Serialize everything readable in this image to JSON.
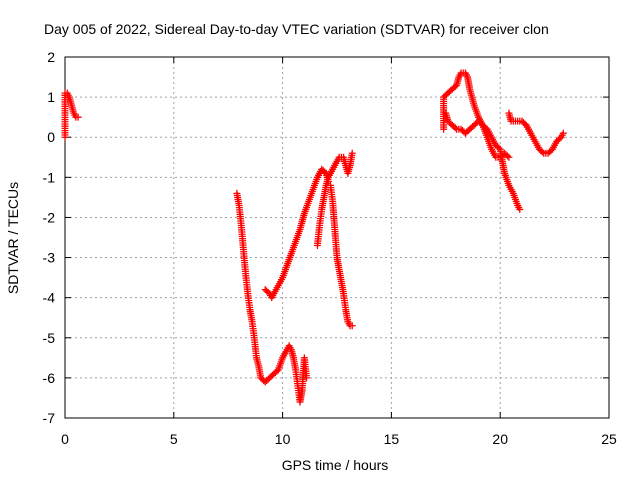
{
  "chart_data": {
    "type": "scatter",
    "title": "Day 005 of 2022, Sidereal Day-to-day VTEC variation (SDTVAR) for receiver clon",
    "xlabel": "GPS time / hours",
    "ylabel": "SDTVAR / TECUs",
    "xlim": [
      0,
      25
    ],
    "ylim": [
      -7,
      2
    ],
    "xticks": [
      "0",
      "5",
      "10",
      "15",
      "20",
      "25"
    ],
    "yticks": [
      "2",
      "1",
      "0",
      "-1",
      "-2",
      "-3",
      "-4",
      "-5",
      "-6",
      "-7"
    ],
    "grid": true,
    "marker": "plus",
    "color": "#ff0000",
    "segments": [
      [
        [
          0.0,
          0.0
        ],
        [
          0.0,
          1.1
        ],
        [
          0.1,
          1.1
        ],
        [
          0.2,
          1.0
        ],
        [
          0.3,
          0.8
        ],
        [
          0.4,
          0.6
        ],
        [
          0.5,
          0.5
        ],
        [
          0.6,
          0.5
        ]
      ],
      [
        [
          7.9,
          -1.4
        ],
        [
          8.0,
          -1.7
        ],
        [
          8.1,
          -2.2
        ],
        [
          8.2,
          -2.8
        ],
        [
          8.3,
          -3.4
        ],
        [
          8.4,
          -3.9
        ],
        [
          8.5,
          -4.3
        ],
        [
          8.6,
          -4.6
        ],
        [
          8.7,
          -5.0
        ],
        [
          8.8,
          -5.5
        ],
        [
          8.9,
          -5.7
        ],
        [
          9.0,
          -6.0
        ],
        [
          9.2,
          -6.1
        ],
        [
          9.4,
          -6.0
        ],
        [
          9.6,
          -5.9
        ],
        [
          9.8,
          -5.8
        ],
        [
          10.0,
          -5.5
        ],
        [
          10.2,
          -5.3
        ],
        [
          10.3,
          -5.2
        ],
        [
          10.4,
          -5.3
        ],
        [
          10.5,
          -5.5
        ],
        [
          10.6,
          -5.8
        ],
        [
          10.7,
          -6.2
        ],
        [
          10.8,
          -6.6
        ],
        [
          10.9,
          -6.3
        ],
        [
          11.0,
          -5.5
        ],
        [
          11.1,
          -6.0
        ]
      ],
      [
        [
          9.2,
          -3.8
        ],
        [
          9.4,
          -3.9
        ],
        [
          9.5,
          -4.0
        ],
        [
          9.6,
          -3.9
        ],
        [
          9.8,
          -3.7
        ],
        [
          10.0,
          -3.5
        ],
        [
          10.2,
          -3.2
        ],
        [
          10.4,
          -2.9
        ],
        [
          10.6,
          -2.6
        ],
        [
          10.8,
          -2.3
        ],
        [
          11.0,
          -1.9
        ],
        [
          11.2,
          -1.6
        ],
        [
          11.4,
          -1.3
        ],
        [
          11.6,
          -1.0
        ],
        [
          11.8,
          -0.8
        ],
        [
          12.0,
          -0.9
        ],
        [
          12.1,
          -1.1
        ]
      ],
      [
        [
          11.6,
          -2.7
        ],
        [
          11.7,
          -2.2
        ],
        [
          11.8,
          -1.8
        ],
        [
          11.9,
          -1.5
        ],
        [
          12.0,
          -1.2
        ],
        [
          12.1,
          -1.0
        ],
        [
          12.2,
          -0.9
        ],
        [
          12.3,
          -0.8
        ],
        [
          12.4,
          -0.7
        ],
        [
          12.5,
          -0.6
        ],
        [
          12.6,
          -0.5
        ],
        [
          12.8,
          -0.5
        ],
        [
          12.9,
          -0.7
        ],
        [
          13.0,
          -0.9
        ],
        [
          13.1,
          -0.7
        ],
        [
          13.2,
          -0.4
        ]
      ],
      [
        [
          12.2,
          -1.2
        ],
        [
          12.3,
          -1.6
        ],
        [
          12.4,
          -2.3
        ],
        [
          12.5,
          -3.0
        ],
        [
          12.6,
          -3.3
        ],
        [
          12.7,
          -3.6
        ],
        [
          12.8,
          -3.9
        ],
        [
          12.9,
          -4.3
        ],
        [
          13.0,
          -4.6
        ],
        [
          13.1,
          -4.7
        ],
        [
          13.2,
          -4.7
        ]
      ],
      [
        [
          17.4,
          0.2
        ],
        [
          17.4,
          1.0
        ],
        [
          17.6,
          1.1
        ],
        [
          17.8,
          1.2
        ],
        [
          18.0,
          1.3
        ],
        [
          18.1,
          1.5
        ],
        [
          18.2,
          1.6
        ],
        [
          18.4,
          1.6
        ],
        [
          18.5,
          1.5
        ],
        [
          18.6,
          1.2
        ],
        [
          18.8,
          0.8
        ],
        [
          19.0,
          0.5
        ],
        [
          19.2,
          0.3
        ],
        [
          19.4,
          0.0
        ],
        [
          19.6,
          -0.3
        ],
        [
          19.8,
          -0.5
        ],
        [
          20.0,
          -0.5
        ],
        [
          20.2,
          -0.4
        ],
        [
          20.4,
          -0.5
        ]
      ],
      [
        [
          17.5,
          0.6
        ],
        [
          17.6,
          0.4
        ],
        [
          17.8,
          0.3
        ],
        [
          18.0,
          0.2
        ],
        [
          18.2,
          0.2
        ],
        [
          18.4,
          0.1
        ],
        [
          18.6,
          0.2
        ],
        [
          18.8,
          0.3
        ],
        [
          19.0,
          0.4
        ],
        [
          19.2,
          0.3
        ],
        [
          19.4,
          0.2
        ],
        [
          19.6,
          0.0
        ],
        [
          19.8,
          -0.2
        ],
        [
          20.0,
          -0.3
        ],
        [
          20.1,
          -0.6
        ],
        [
          20.2,
          -0.9
        ],
        [
          20.4,
          -1.2
        ],
        [
          20.6,
          -1.4
        ],
        [
          20.8,
          -1.7
        ],
        [
          20.9,
          -1.8
        ]
      ],
      [
        [
          20.4,
          0.6
        ],
        [
          20.5,
          0.4
        ],
        [
          20.7,
          0.4
        ],
        [
          21.0,
          0.4
        ],
        [
          21.2,
          0.3
        ],
        [
          21.4,
          0.1
        ],
        [
          21.6,
          -0.1
        ],
        [
          21.8,
          -0.3
        ],
        [
          22.0,
          -0.4
        ],
        [
          22.2,
          -0.4
        ],
        [
          22.4,
          -0.3
        ],
        [
          22.6,
          -0.1
        ],
        [
          22.8,
          0.0
        ],
        [
          22.9,
          0.1
        ]
      ]
    ]
  }
}
